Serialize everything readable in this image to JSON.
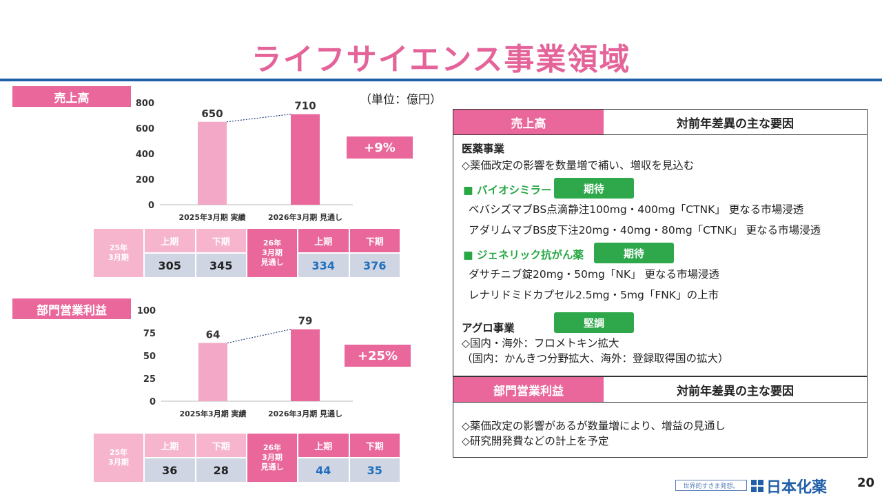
{
  "title": "ライフサイエンス事業領域",
  "unit_label": "（単位：億円）",
  "sales": {
    "label": "売上高",
    "growth": "+9%",
    "table": {
      "fy25_label": [
        "25年",
        "3月期"
      ],
      "fy26_label": [
        "26年",
        "3月期",
        "見通し"
      ],
      "h1": "上期",
      "h2": "下期",
      "fy25_h1": "305",
      "fy25_h2": "345",
      "fy26_h1": "334",
      "fy26_h2": "376"
    }
  },
  "profit": {
    "label": "部門営業利益",
    "growth": "+25%",
    "table": {
      "fy25_label": [
        "25年",
        "3月期"
      ],
      "fy26_label": [
        "26年",
        "3月期",
        "見通し"
      ],
      "h1": "上期",
      "h2": "下期",
      "fy25_h1": "36",
      "fy25_h2": "28",
      "fy26_h1": "44",
      "fy26_h2": "35"
    }
  },
  "chart_data": [
    {
      "type": "bar",
      "categories": [
        "2025年3月期 実績",
        "2026年3月期 見通し"
      ],
      "values": [
        650,
        710
      ],
      "data_labels": [
        "650",
        "710"
      ],
      "yticks": [
        0,
        200,
        400,
        600,
        800
      ],
      "ylim": [
        0,
        800
      ],
      "colors": [
        "#f2a8c6",
        "#e9679b"
      ],
      "grid": false,
      "legend": "none"
    },
    {
      "type": "bar",
      "categories": [
        "2025年3月期 実績",
        "2026年3月期 見通し"
      ],
      "values": [
        64,
        79
      ],
      "data_labels": [
        "64",
        "79"
      ],
      "yticks": [
        0,
        25,
        50,
        75,
        100
      ],
      "ylim": [
        0,
        100
      ],
      "colors": [
        "#f2a8c6",
        "#e9679b"
      ],
      "grid": false,
      "legend": "none"
    }
  ],
  "sales_panel": {
    "head_left": "売上高",
    "head_right": "対前年差異の主な要因",
    "pharma_heading": "医薬事業",
    "pharma_line": "◇薬価改定の影響を数量増で補い、増収を見込む",
    "biosimilar_label": "■ バイオシミラー",
    "biosimilar_badge": "期待",
    "biosimilar_lines": [
      "ベバシズマブBS点滴静注100mg・400mg「CTNK」 更なる市場浸透",
      "アダリムマブBS皮下注20mg・40mg・80mg「CTNK」 更なる市場浸透"
    ],
    "generic_label": "■ ジェネリック抗がん薬",
    "generic_badge": "期待",
    "generic_lines": [
      "ダサチニブ錠20mg・50mg「NK」 更なる市場浸透",
      "レナリドミドカプセル2.5mg・5mg「FNK」の上市"
    ],
    "agro_heading": "アグロ事業",
    "agro_badge": "堅調",
    "agro_lines": [
      "◇国内・海外：フロメトキン拡大",
      "（国内：かんきつ分野拡大、海外：登録取得国の拡大）"
    ]
  },
  "profit_panel": {
    "head_left": "部門営業利益",
    "head_right": "対前年差異の主な要因",
    "lines": [
      "◇薬価改定の影響があるが数量増により、増益の見通し",
      "◇研究開発費などの計上を予定"
    ]
  },
  "footer": {
    "tagline": "世界的すきま発想。",
    "logo_text": "日本化薬",
    "page_number": "20"
  }
}
